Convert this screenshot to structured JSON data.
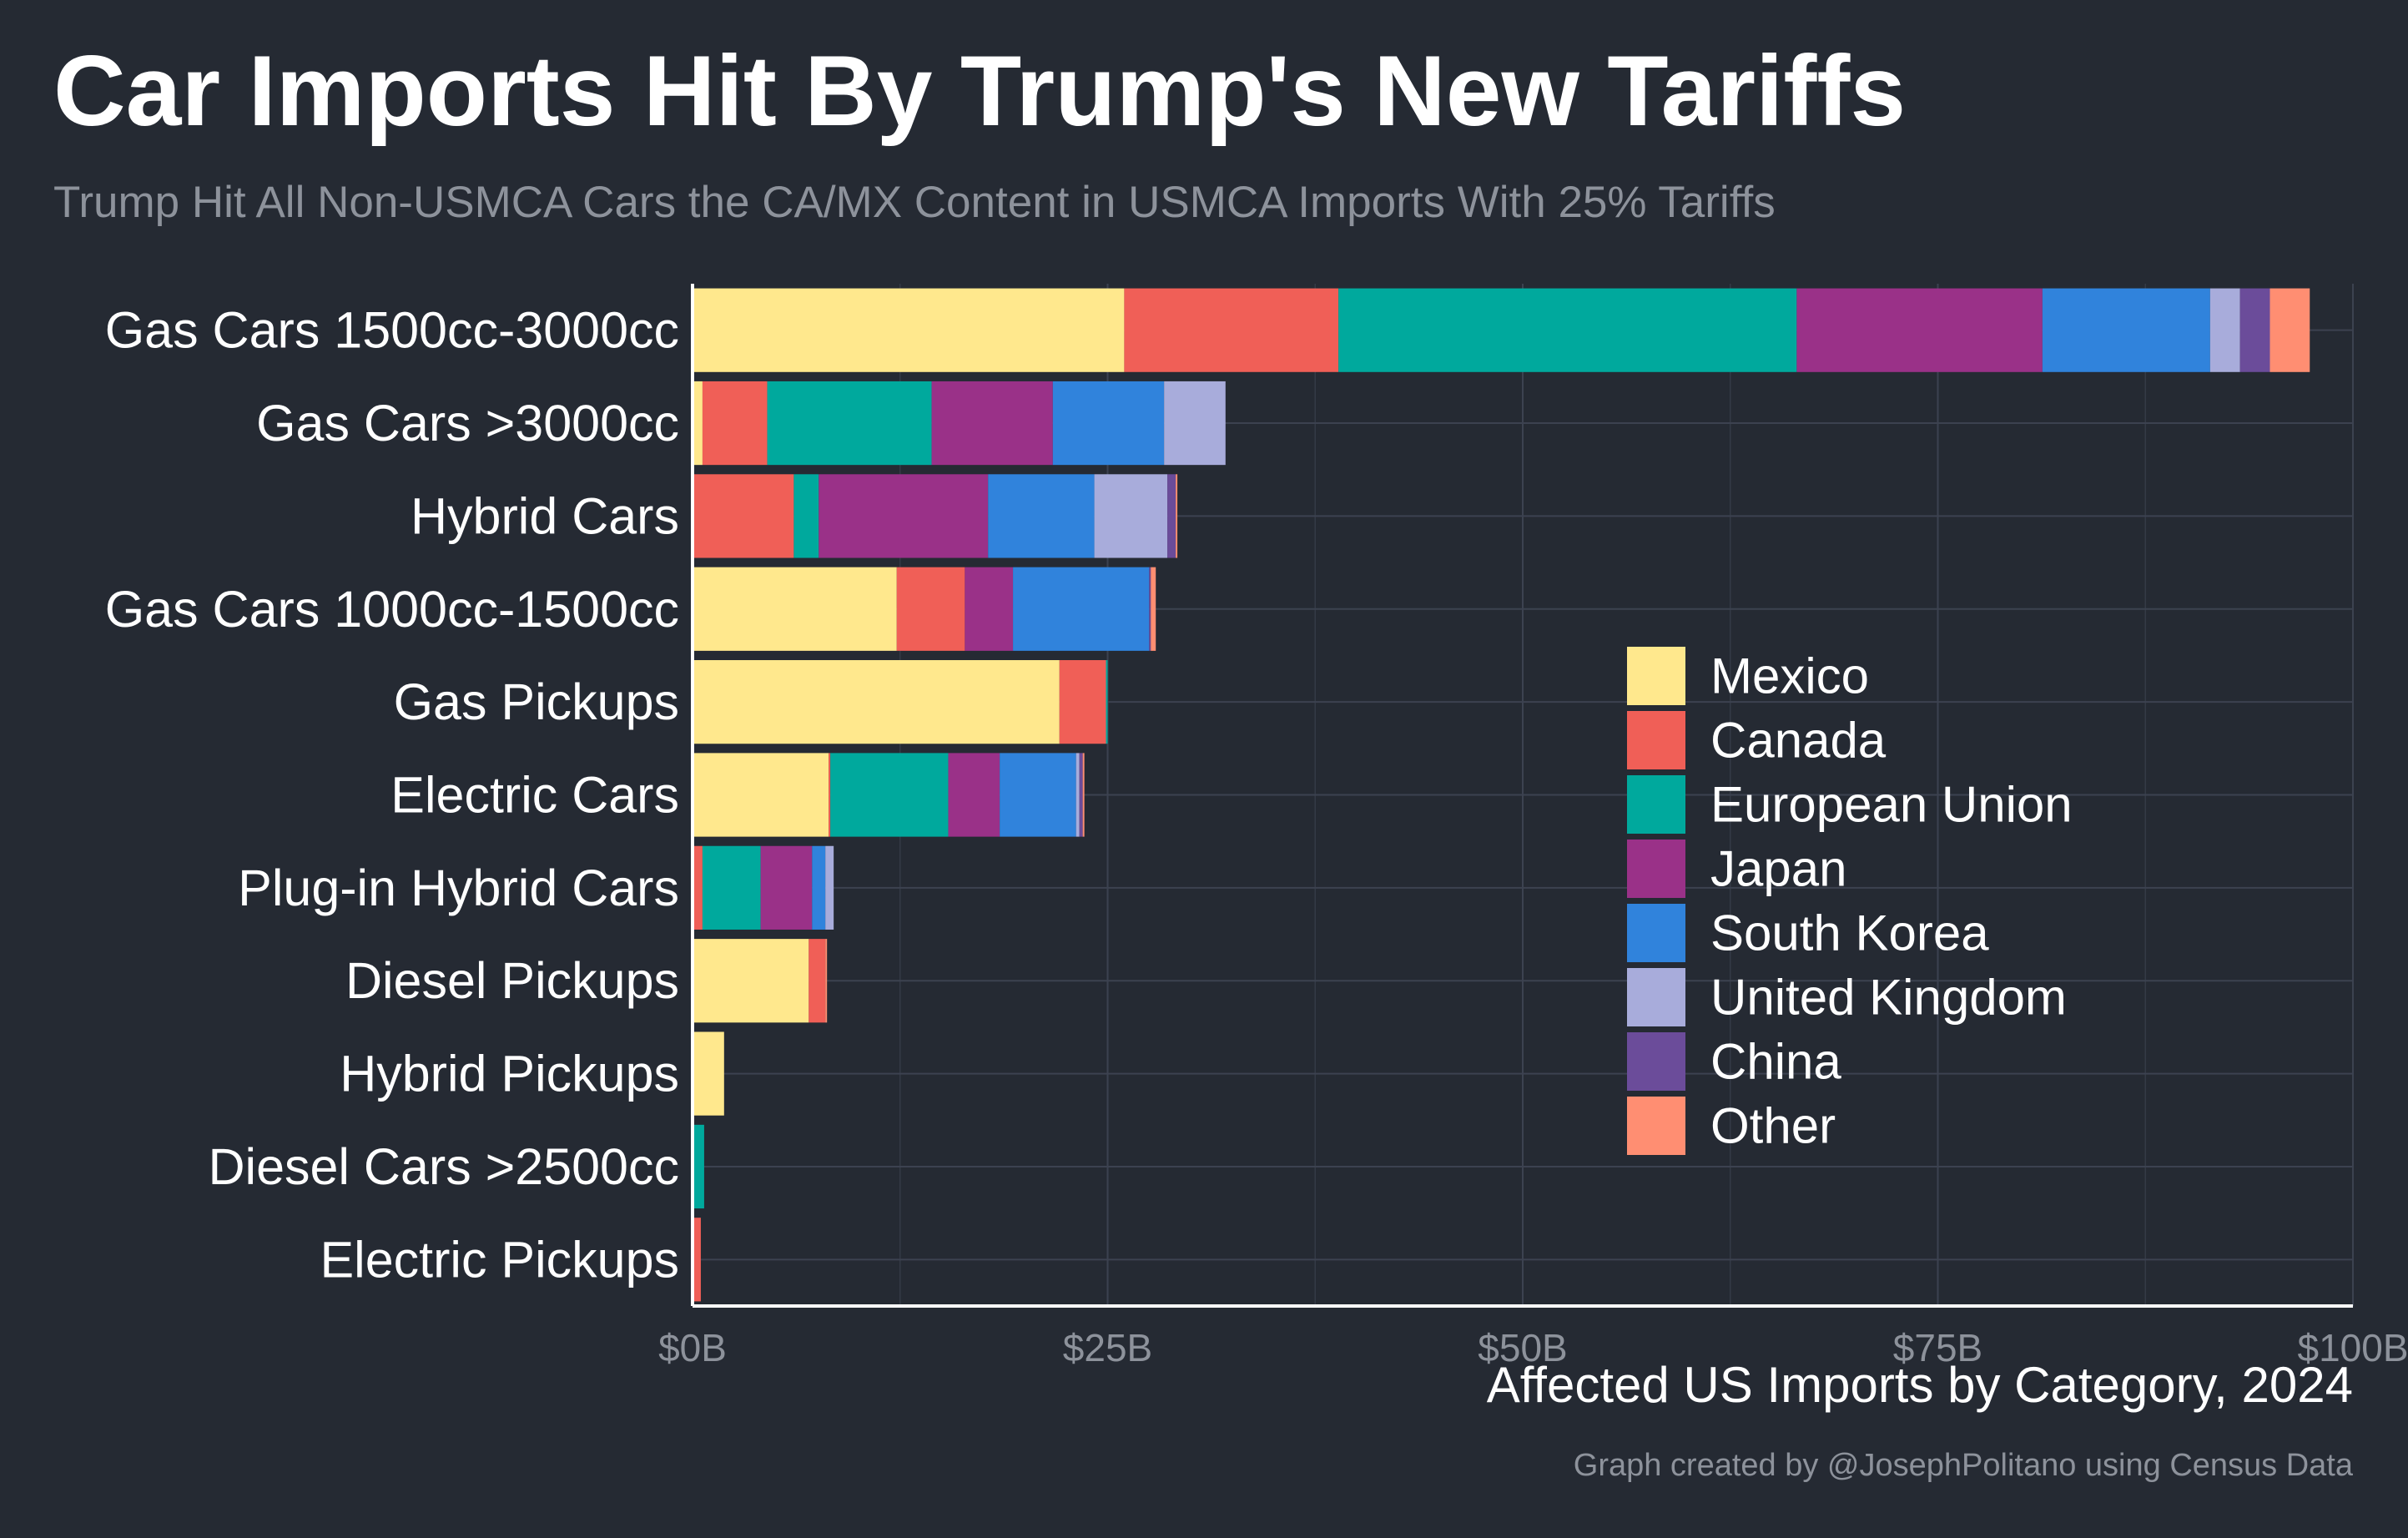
{
  "chart_data": {
    "type": "bar",
    "orientation": "horizontal",
    "stacked": true,
    "title": "Car Imports Hit By Trump's New Tariffs",
    "subtitle": "Trump Hit All Non-USMCA Cars the CA/MX Content in USMCA Imports With 25% Tariffs",
    "xlabel": "Affected US Imports by Category, 2024",
    "caption": "Graph created by @JosephPolitano using Census Data",
    "xlim": [
      0,
      100
    ],
    "x_ticks": [
      0,
      25,
      50,
      75,
      100
    ],
    "x_tick_labels": [
      "$0B",
      "$25B",
      "$50B",
      "$75B",
      "$100B"
    ],
    "grid": true,
    "legend_position": "right-center",
    "categories": [
      "Gas Cars 1500cc-3000cc",
      "Gas Cars >3000cc",
      "Hybrid Cars",
      "Gas Cars 1000cc-1500cc",
      "Gas Pickups",
      "Electric Cars",
      "Plug-in Hybrid Cars",
      "Diesel Pickups",
      "Hybrid Pickups",
      "Diesel Cars >2500cc",
      "Electric Pickups"
    ],
    "series": [
      {
        "name": "Mexico",
        "color": "#ffe88d",
        "values": [
          26.0,
          0.6,
          0.0,
          12.3,
          22.1,
          8.2,
          0.0,
          7.0,
          1.9,
          0.0,
          0.0
        ]
      },
      {
        "name": "Canada",
        "color": "#f05f57",
        "values": [
          12.9,
          3.9,
          6.1,
          4.1,
          2.8,
          0.1,
          0.6,
          1.0,
          0.0,
          0.1,
          0.5
        ]
      },
      {
        "name": "European Union",
        "color": "#00a99d",
        "values": [
          27.6,
          9.9,
          1.5,
          0.0,
          0.1,
          7.1,
          3.5,
          0.0,
          0.0,
          0.6,
          0.0
        ]
      },
      {
        "name": "Japan",
        "color": "#9a3188",
        "values": [
          14.8,
          7.3,
          10.2,
          2.9,
          0.0,
          3.1,
          3.1,
          0.0,
          0.0,
          0.0,
          0.0
        ]
      },
      {
        "name": "South Korea",
        "color": "#3083dc",
        "values": [
          10.1,
          6.7,
          6.4,
          8.2,
          0.0,
          4.6,
          0.8,
          0.0,
          0.0,
          0.0,
          0.0
        ]
      },
      {
        "name": "United Kingdom",
        "color": "#a8acdb",
        "values": [
          1.8,
          3.7,
          4.4,
          0.0,
          0.0,
          0.2,
          0.5,
          0.0,
          0.0,
          0.0,
          0.0
        ]
      },
      {
        "name": "China",
        "color": "#6b4c9a",
        "values": [
          1.8,
          0.0,
          0.5,
          0.1,
          0.0,
          0.2,
          0.0,
          0.0,
          0.0,
          0.0,
          0.0
        ]
      },
      {
        "name": "Other",
        "color": "#ff8e72",
        "values": [
          2.4,
          0.0,
          0.1,
          0.3,
          0.0,
          0.1,
          0.0,
          0.1,
          0.0,
          0.0,
          0.0
        ]
      }
    ]
  }
}
